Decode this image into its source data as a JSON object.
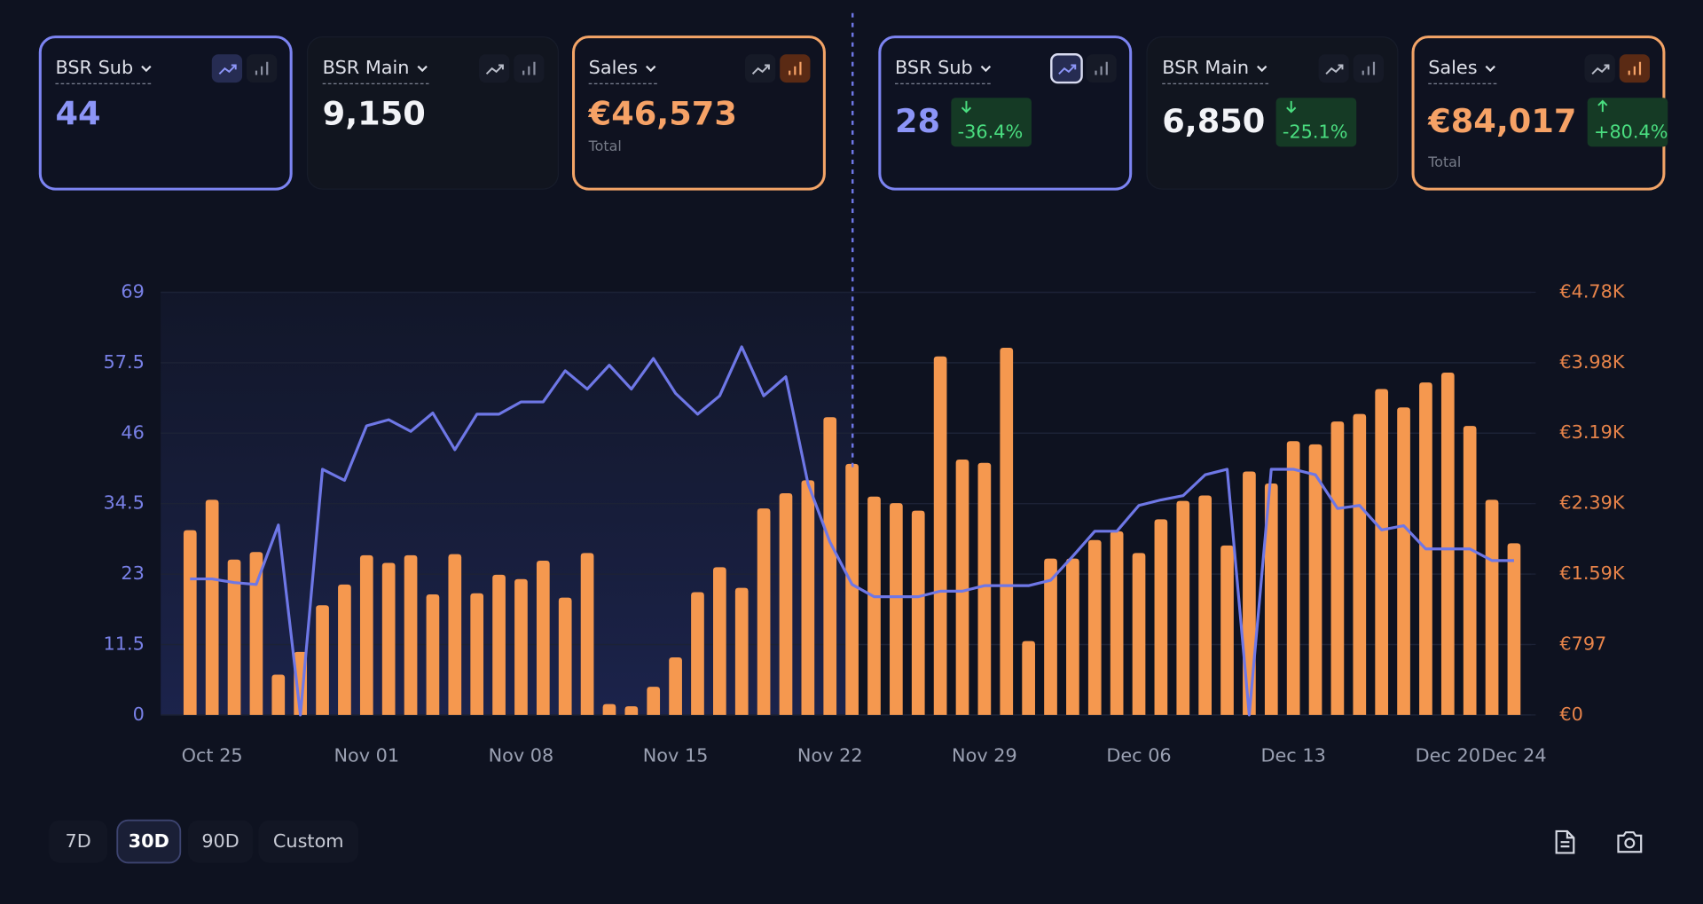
{
  "cards": [
    {
      "label": "BSR Sub",
      "value": "44"
    },
    {
      "label": "BSR Main",
      "value": "9,150"
    },
    {
      "label": "Sales",
      "value": "€46,573",
      "note": "Total"
    },
    {
      "label": "BSR Sub",
      "value": "28",
      "change": "-36.4%"
    },
    {
      "label": "BSR Main",
      "value": "6,850",
      "change": "-25.1%"
    },
    {
      "label": "Sales",
      "value": "€84,017",
      "change": "+80.4%",
      "note": "Total"
    }
  ],
  "controls": {
    "ranges": [
      "7D",
      "30D",
      "90D",
      "Custom"
    ]
  },
  "chart_data": {
    "type": "combo",
    "categories": [
      null,
      "Oct 25",
      null,
      null,
      null,
      null,
      null,
      null,
      "Nov 01",
      null,
      null,
      null,
      null,
      null,
      null,
      "Nov 08",
      null,
      null,
      null,
      null,
      null,
      null,
      "Nov 15",
      null,
      null,
      null,
      null,
      null,
      null,
      "Nov 22",
      null,
      null,
      null,
      null,
      null,
      null,
      "Nov 29",
      null,
      null,
      null,
      null,
      null,
      null,
      "Dec 06",
      null,
      null,
      null,
      null,
      null,
      null,
      "Dec 13",
      null,
      null,
      null,
      null,
      null,
      null,
      "Dec 20",
      null,
      null,
      "Dec 24"
    ],
    "ylim": [
      0,
      69
    ],
    "yticks": [
      0,
      11.5,
      23,
      34.5,
      46,
      57.5,
      69
    ],
    "y2lim": [
      0,
      4780
    ],
    "y2ticks": [
      {
        "value": 0,
        "label": "€0"
      },
      {
        "value": 797,
        "label": "€797"
      },
      {
        "value": 1593,
        "label": "€1.59K"
      },
      {
        "value": 2390,
        "label": "€2.39K"
      },
      {
        "value": 3187,
        "label": "€3.19K"
      },
      {
        "value": 3983,
        "label": "€3.98K"
      },
      {
        "value": 4780,
        "label": "€4.78K"
      }
    ],
    "grid": true,
    "series": [
      {
        "type": "bar",
        "axis": "y2",
        "color": "#f5984f",
        "values": [
          2089,
          2433,
          1757,
          1843,
          455,
          713,
          1241,
          1475,
          1806,
          1720,
          1806,
          1364,
          1819,
          1376,
          1585,
          1536,
          1745,
          1327,
          1831,
          123,
          98,
          319,
          651,
          1389,
          1671,
          1438,
          2335,
          2507,
          2654,
          3367,
          2839,
          2470,
          2396,
          2310,
          4055,
          2888,
          2851,
          4153,
          836,
          1769,
          1769,
          1978,
          2077,
          1831,
          2212,
          2421,
          2482,
          1917,
          2753,
          2617,
          3097,
          3060,
          3318,
          3404,
          3686,
          3478,
          3760,
          3871,
          3269,
          2433,
          1942
        ]
      },
      {
        "type": "line",
        "color": "#6e77e6",
        "values": [
          22.2,
          22.2,
          21.6,
          21.3,
          31.0,
          0,
          40.1,
          38.3,
          47.2,
          48.2,
          46.3,
          49.3,
          43.3,
          49.1,
          49.1,
          51.1,
          51.1,
          56.2,
          53.2,
          57.1,
          53.2,
          58.2,
          52.5,
          49.1,
          52.1,
          60.1,
          52.1,
          55.2,
          37.8,
          28.2,
          21.3,
          19.3,
          19.3,
          19.3,
          20.2,
          20.2,
          21.1,
          21.1,
          21.1,
          22.0,
          25.9,
          30.0,
          30.0,
          34.2,
          35.1,
          35.8,
          39.2,
          40.1,
          0,
          40.1,
          40.1,
          39.2,
          33.7,
          34.2,
          30.2,
          30.9,
          27.1,
          27.1,
          27.1,
          25.2,
          25.2
        ]
      }
    ]
  }
}
